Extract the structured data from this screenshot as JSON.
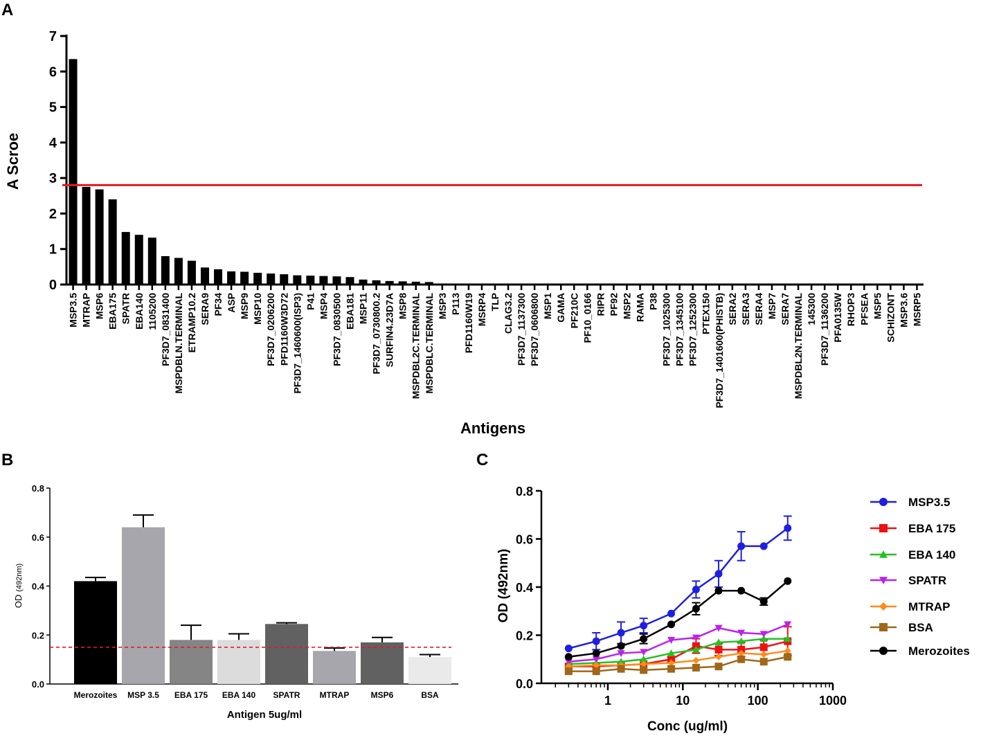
{
  "panels": {
    "a": "A",
    "b": "B",
    "c": "C"
  },
  "chart_data": [
    {
      "panel": "A",
      "type": "bar",
      "xlabel": "Antigens",
      "ylabel": "A Scroe",
      "ylim": [
        0,
        7
      ],
      "yticks": [
        0,
        1,
        2,
        3,
        4,
        5,
        6,
        7
      ],
      "bar_color": "#000000",
      "threshold": {
        "value": 2.8,
        "color": "#e31a1c"
      },
      "categories": [
        "MSP3.5",
        "MTRAP",
        "MSP6",
        "EBA175",
        "SPATR",
        "EBA140",
        "1105200",
        "PF3D7_0831400",
        "MSPDBLN.TERMINAL",
        "ETRAMP10.2",
        "SERA9",
        "PF34",
        "ASP",
        "MSP9",
        "MSP10",
        "PF3D7_0206200",
        "PFD1160W3D72",
        "PF3D7_1460600(ISP3)",
        "P41",
        "MSP4",
        "PF3D7_0830500",
        "EBA181",
        "MSP11",
        "PF3D7_0730800.2",
        "SURFIN4.23D7A",
        "MSP8",
        "MSPDBL2C.TERMINAL",
        "MSPDBLC.TERMINAL",
        "MSP3",
        "P113",
        "PFD1160W19",
        "MSRP4",
        "TLP",
        "CLAG3.2",
        "PF3D7_1137300",
        "PF3D7_0606800",
        "MSP1",
        "GAMA",
        "PF210C",
        "PF10_0166",
        "RIPR",
        "PF92",
        "MSP2",
        "RAMA",
        "P38",
        "PF3D7_1025300",
        "PF3D7_1345100",
        "PF3D7_1252300",
        "PTEX150",
        "PF3D7_1401600(PHISTB)",
        "SERA2",
        "SERA3",
        "SERA4",
        "MSP7",
        "SERA7",
        "MSPDBL2N.TERMINAL",
        "145300",
        "PF3D7_1136200",
        "PFA0135W",
        "RHOP3",
        "PFSEA",
        "MSP5",
        "SCHIZONT",
        "MSP3.6",
        "MSRP5"
      ],
      "values": [
        6.35,
        2.75,
        2.68,
        2.4,
        1.48,
        1.4,
        1.32,
        0.8,
        0.75,
        0.67,
        0.48,
        0.43,
        0.37,
        0.36,
        0.33,
        0.31,
        0.29,
        0.26,
        0.25,
        0.24,
        0.23,
        0.21,
        0.14,
        0.12,
        0.1,
        0.09,
        0.08,
        0.07,
        0.03,
        0.02,
        0.01,
        0.01,
        0,
        0,
        0,
        0,
        0,
        0,
        0,
        0,
        0,
        0,
        0,
        0,
        0,
        0,
        0,
        0,
        0,
        0,
        0,
        0,
        0,
        0,
        0,
        0,
        0,
        0,
        0,
        0,
        0,
        0,
        0,
        0,
        0
      ]
    },
    {
      "panel": "B",
      "type": "bar",
      "xlabel": "Antigen 5ug/ml",
      "ylabel": "OD",
      "ylabel_unit": "(492nm)",
      "ylim": [
        0,
        0.8
      ],
      "yticks": [
        "0.0",
        "0.2",
        "0.4",
        "0.6",
        "0.8"
      ],
      "cutoff": {
        "value": 0.15,
        "color": "#e31a1c"
      },
      "categories": [
        "Merozoites",
        "MSP 3.5",
        "EBA 175",
        "EBA 140",
        "SPATR",
        "MTRAP",
        "MSP6",
        "BSA"
      ],
      "values": [
        0.42,
        0.64,
        0.18,
        0.18,
        0.245,
        0.135,
        0.17,
        0.11
      ],
      "errors": [
        0.015,
        0.05,
        0.06,
        0.025,
        0.005,
        0.012,
        0.02,
        0.01
      ],
      "colors": [
        "#000000",
        "#a7a6ac",
        "#858585",
        "#dcdcdc",
        "#616161",
        "#a7a6ac",
        "#616161",
        "#eaeaea"
      ]
    },
    {
      "panel": "C",
      "type": "line",
      "xscale": "log",
      "xlabel": "Conc (ug/ml)",
      "ylabel": "OD (492nm)",
      "ylim": [
        0,
        0.8
      ],
      "yticks": [
        "0.0",
        "0.2",
        "0.4",
        "0.6",
        "0.8"
      ],
      "xticks": [
        "1",
        "10",
        "100",
        "1000"
      ],
      "x": [
        0.3,
        0.7,
        1.5,
        3,
        7,
        15,
        30,
        60,
        120,
        250
      ],
      "series": [
        {
          "name": "MSP3.5",
          "color": "#1f1fe0",
          "marker": "circle",
          "values": [
            0.145,
            0.175,
            0.21,
            0.24,
            0.29,
            0.39,
            0.455,
            0.57,
            0.57,
            0.645
          ],
          "errors": [
            0.005,
            0.035,
            0.045,
            0.03,
            0.005,
            0.035,
            0.055,
            0.06,
            0.005,
            0.05
          ]
        },
        {
          "name": "EBA 175",
          "color": "#ee1111",
          "marker": "square",
          "values": [
            0.07,
            0.07,
            0.075,
            0.08,
            0.1,
            0.155,
            0.14,
            0.14,
            0.15,
            0.175
          ],
          "errors": [
            0.005,
            0.005,
            0.005,
            0.005,
            0.01,
            0.03,
            0.025,
            0.03,
            0.03,
            0.06
          ]
        },
        {
          "name": "EBA 140",
          "color": "#22c022",
          "marker": "triangle-up",
          "values": [
            0.08,
            0.085,
            0.09,
            0.1,
            0.125,
            0.14,
            0.17,
            0.175,
            0.185,
            0.185
          ],
          "errors": [
            0.005,
            0.005,
            0.005,
            0.005,
            0.005,
            0.005,
            0.005,
            0.005,
            0.005,
            0.005
          ]
        },
        {
          "name": "SPATR",
          "color": "#bb22ee",
          "marker": "triangle-down",
          "values": [
            0.09,
            0.1,
            0.125,
            0.13,
            0.18,
            0.19,
            0.23,
            0.21,
            0.205,
            0.245
          ],
          "errors": [
            0.005,
            0.005,
            0.005,
            0.005,
            0.005,
            0.005,
            0.005,
            0.005,
            0.005,
            0.005
          ]
        },
        {
          "name": "MTRAP",
          "color": "#ff8c1a",
          "marker": "diamond",
          "values": [
            0.07,
            0.075,
            0.075,
            0.08,
            0.085,
            0.095,
            0.11,
            0.125,
            0.12,
            0.135
          ],
          "errors": [
            0.005,
            0.005,
            0.005,
            0.005,
            0.005,
            0.005,
            0.005,
            0.005,
            0.005,
            0.005
          ]
        },
        {
          "name": "BSA",
          "color": "#a0661a",
          "marker": "square",
          "values": [
            0.05,
            0.05,
            0.06,
            0.055,
            0.06,
            0.065,
            0.07,
            0.1,
            0.09,
            0.11
          ],
          "errors": [
            0.005,
            0.005,
            0.005,
            0.005,
            0.005,
            0.005,
            0.005,
            0.005,
            0.005,
            0.005
          ]
        },
        {
          "name": "Merozoites",
          "color": "#000000",
          "marker": "circle",
          "values": [
            0.11,
            0.125,
            0.155,
            0.185,
            0.245,
            0.31,
            0.385,
            0.385,
            0.34,
            0.425
          ],
          "errors": [
            0.005,
            0.005,
            0.005,
            0.02,
            0.005,
            0.025,
            0.005,
            0.005,
            0.015,
            0.005
          ]
        }
      ]
    }
  ]
}
